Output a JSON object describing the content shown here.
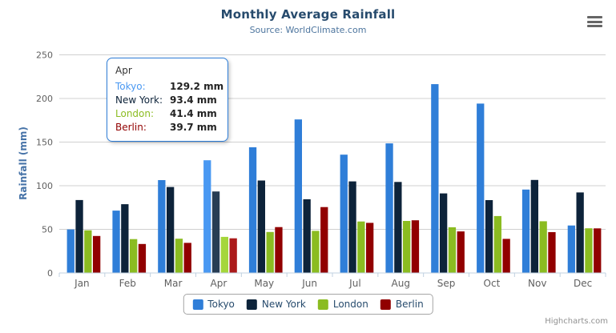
{
  "chart": {
    "title": "Monthly Average Rainfall",
    "subtitle": "Source: WorldClimate.com",
    "y_axis_title": "Rainfall (mm)",
    "credits": "Highcharts.com"
  },
  "chart_data": {
    "type": "bar",
    "title": "Monthly Average Rainfall",
    "subtitle": "Source: WorldClimate.com",
    "xlabel": "",
    "ylabel": "Rainfall (mm)",
    "categories": [
      "Jan",
      "Feb",
      "Mar",
      "Apr",
      "May",
      "Jun",
      "Jul",
      "Aug",
      "Sep",
      "Oct",
      "Nov",
      "Dec"
    ],
    "yticks": [
      0,
      50,
      100,
      150,
      200,
      250
    ],
    "ylim": [
      0,
      250
    ],
    "grid": true,
    "legend_position": "bottom",
    "hovered_category": "Apr",
    "hovered_category_index": 3,
    "axis_line_color": "#c0d0e0",
    "grid_color": "#d0d0d0",
    "tick_label_color": "#606060",
    "series": [
      {
        "name": "Tokyo",
        "color": "#2f7ed8",
        "values": [
          49.9,
          71.5,
          106.4,
          129.2,
          144.0,
          176.0,
          135.6,
          148.5,
          216.4,
          194.1,
          95.6,
          54.4
        ]
      },
      {
        "name": "New York",
        "color": "#0d233a",
        "values": [
          83.6,
          78.8,
          98.5,
          93.4,
          106.0,
          84.5,
          105.0,
          104.3,
          91.2,
          83.5,
          106.6,
          92.3
        ]
      },
      {
        "name": "London",
        "color": "#8bbc21",
        "values": [
          48.9,
          38.8,
          39.3,
          41.4,
          47.0,
          48.3,
          59.0,
          59.6,
          52.4,
          65.2,
          59.3,
          51.2
        ]
      },
      {
        "name": "Berlin",
        "color": "#910000",
        "values": [
          42.4,
          33.2,
          34.5,
          39.7,
          52.6,
          75.5,
          57.4,
          60.4,
          47.6,
          39.1,
          46.8,
          51.1
        ]
      }
    ]
  },
  "tooltip": {
    "header": "Apr",
    "rows": [
      {
        "label": "Tokyo:",
        "value": "129.2 mm"
      },
      {
        "label": "New York:",
        "value": "93.4 mm"
      },
      {
        "label": "London:",
        "value": "41.4 mm"
      },
      {
        "label": "Berlin:",
        "value": "39.7 mm"
      }
    ]
  }
}
